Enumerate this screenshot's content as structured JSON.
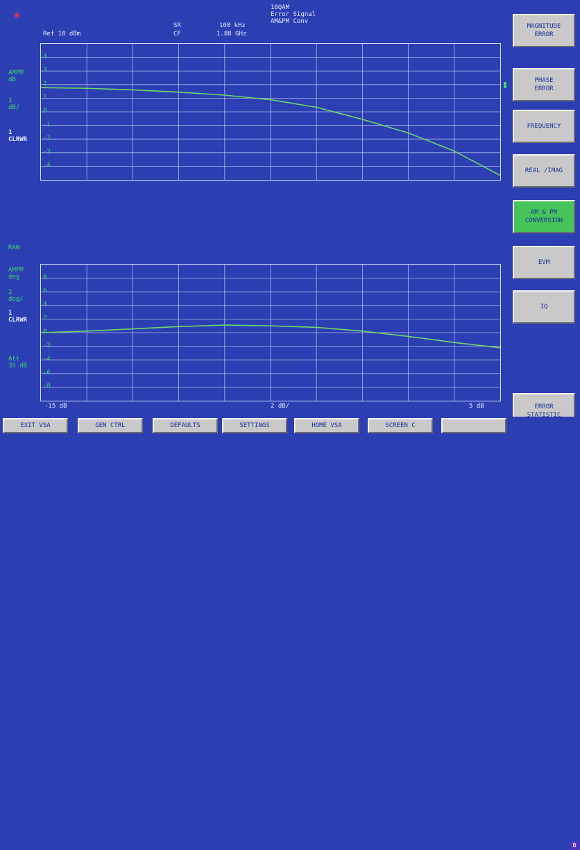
{
  "header": {
    "ref": "Ref 10 dBm",
    "sr_label": "SR",
    "sr_value": "100 kHz",
    "cf_label": "CF",
    "cf_value": "1.88 GHz",
    "title_line1": "16QAM",
    "title_line2": "Error Signal",
    "title_line3": "AM&PM Conv"
  },
  "plot1": {
    "trace_label_1": "AMPM",
    "trace_label_2": "dB",
    "scale_1": "1",
    "scale_2": "dB/",
    "trace_num": "1",
    "trace_mode": "CLRWR",
    "marker": "A",
    "y_ticks": [
      "4",
      "3",
      "2",
      "1",
      "0",
      "-1",
      "-2",
      "-3",
      "-4"
    ]
  },
  "plot2": {
    "section_label": "RAW",
    "trace_label_1": "AMPM",
    "trace_label_2": "deg",
    "scale_1": "2",
    "scale_2": "deg/",
    "trace_num": "1",
    "trace_mode": "CLRWR",
    "att_1": "Att",
    "att_2": "35 dB",
    "marker": "C",
    "y_ticks": [
      "8",
      "6",
      "4",
      "2",
      "0",
      "-2",
      "-4",
      "-6",
      "-8"
    ]
  },
  "xaxis": {
    "left": "-15 dB",
    "center": "2 dB/",
    "right": "5 dB"
  },
  "softkeys": [
    {
      "label": "MAGNITUDE\nERROR",
      "active": false
    },
    {
      "label": "PHASE\nERROR",
      "active": false
    },
    {
      "label": "FREQUENCY",
      "active": false
    },
    {
      "label": "REAL /IMAG",
      "active": false
    },
    {
      "label": "AM & PM\nCONVERSION",
      "active": true
    },
    {
      "label": "EVM",
      "active": false
    },
    {
      "label": "IQ",
      "active": false
    },
    {
      "label": "ERROR\nSTATISTIC",
      "active": false
    }
  ],
  "hotkeys": [
    "EXIT VSA",
    "GEN CTRL",
    "DEFAULTS",
    "SETTINGS",
    "HOME VSA",
    "SCREEN C",
    ""
  ],
  "corner_badge": "B",
  "colors": {
    "screen": "#2b3fb3",
    "grid": "#d8e0ff",
    "trace": "#6fd66a",
    "label": "#3fd86a",
    "softkey": "#c9c9c9",
    "active": "#46c45a"
  },
  "chart_data": [
    {
      "type": "line",
      "ylim": [
        -4.5,
        4.5
      ],
      "xlim": [
        -15,
        5
      ],
      "x": [
        -15,
        -13,
        -11,
        -9,
        -7,
        -5,
        -3,
        -1,
        1,
        3,
        5
      ],
      "series": [
        {
          "values": [
            1.6,
            1.55,
            1.45,
            1.3,
            1.1,
            0.8,
            0.3,
            -0.5,
            -1.4,
            -2.6,
            -4.2
          ]
        }
      ]
    },
    {
      "type": "line",
      "ylim": [
        -9,
        9
      ],
      "xlim": [
        -15,
        5
      ],
      "x": [
        -15,
        -13,
        -11,
        -9,
        -7,
        -5,
        -3,
        -1,
        1,
        3,
        5
      ],
      "series": [
        {
          "values": [
            0.0,
            0.2,
            0.5,
            0.8,
            1.0,
            0.9,
            0.7,
            0.2,
            -0.5,
            -1.3,
            -2.0
          ]
        }
      ]
    }
  ]
}
